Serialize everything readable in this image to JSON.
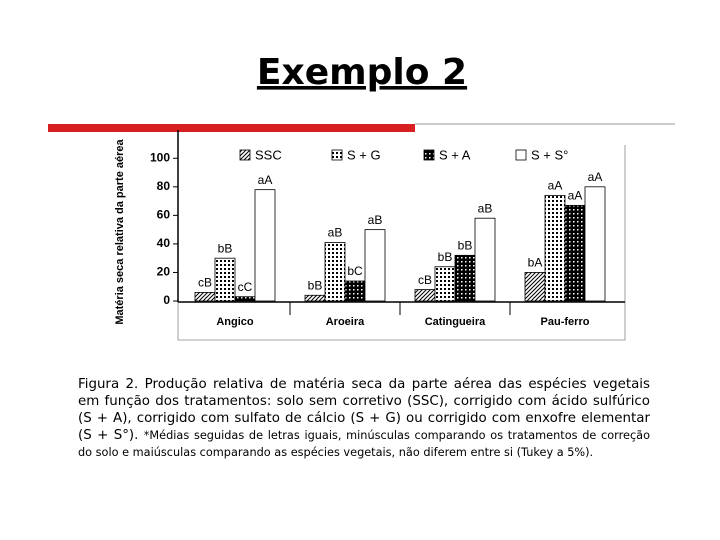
{
  "slide_title": "Exemplo 2",
  "caption": "Figura 2. Produção relativa de matéria seca da parte aérea das espécies vegetais em função dos tratamentos: solo sem corretivo (SSC), corrigido com ácido sulfúrico (S + A), corrigido com sulfato de cálcio (S + G) ou corrigido com enxofre elementar (S + S°).",
  "note": "*Médias seguidas de letras iguais, minúsculas comparando os tratamentos de correção do solo e maiúsculas comparando as espécies vegetais, não diferem entre si (Tukey a 5%).",
  "chart_data": {
    "type": "bar",
    "y_label": "Matéria seca relativa da parte aérea",
    "categories": [
      "Angico",
      "Aroeira",
      "Catingueira",
      "Pau-ferro"
    ],
    "series": [
      {
        "name": "SSC",
        "pattern": "diagonal",
        "values": [
          6,
          4,
          8,
          20
        ],
        "letters": [
          "cB",
          "bB",
          "cB",
          "bA"
        ]
      },
      {
        "name": "S + G",
        "pattern": "dots",
        "values": [
          30,
          41,
          24,
          74
        ],
        "letters": [
          "bB",
          "aB",
          "bB",
          "aA"
        ]
      },
      {
        "name": "S + A",
        "pattern": "checker",
        "values": [
          3,
          14,
          32,
          67
        ],
        "letters": [
          "cC",
          "bC",
          "bB",
          "aA"
        ]
      },
      {
        "name": "S + S°",
        "pattern": "none",
        "values": [
          78,
          50,
          58,
          80
        ],
        "letters": [
          "aA",
          "aB",
          "aB",
          "aA"
        ]
      }
    ],
    "ylim": [
      0,
      110
    ],
    "yticks": [
      0,
      20,
      40,
      60,
      80,
      100
    ]
  }
}
